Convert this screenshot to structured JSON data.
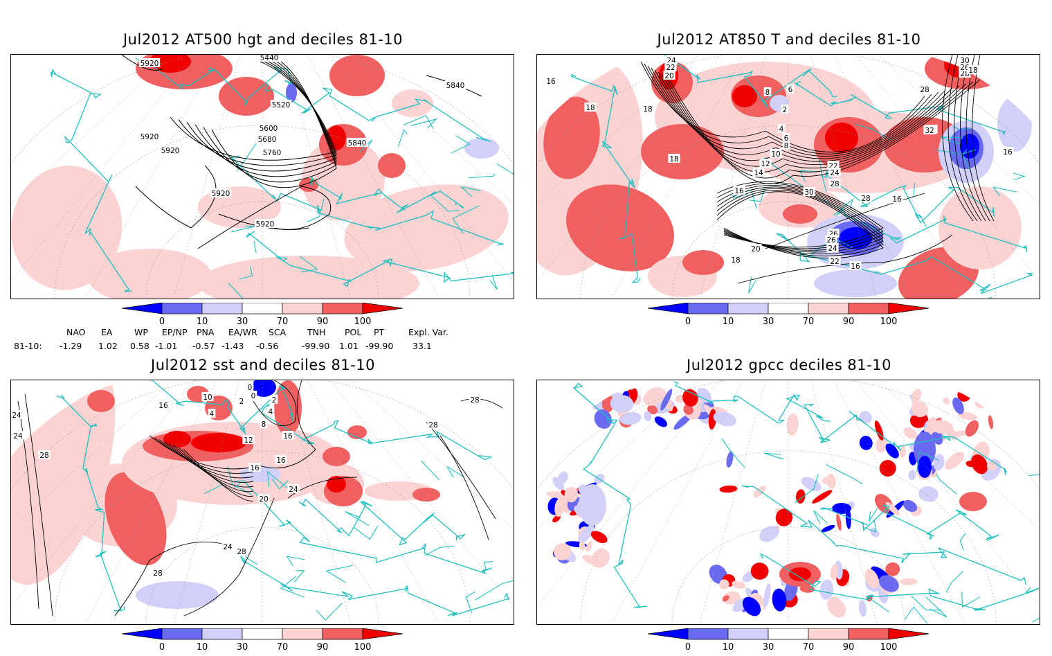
{
  "panels": [
    {
      "id": "p1",
      "title": "Jul2012 AT500 hgt and deciles 81-10",
      "contour_labels": [
        "5920",
        "5440",
        "5520",
        "5600",
        "5680",
        "5760",
        "5840",
        "5920",
        "5920",
        "5840",
        "5920",
        "5920"
      ]
    },
    {
      "id": "p2",
      "title": "Jul2012 AT850 T and deciles 81-10",
      "contour_labels": [
        "24",
        "22",
        "20",
        "16",
        "18",
        "18",
        "18",
        "8",
        "6",
        "2",
        "4",
        "6",
        "8",
        "10",
        "12",
        "14",
        "16",
        "22",
        "24",
        "28",
        "30",
        "28",
        "26",
        "26",
        "24",
        "22",
        "20",
        "18",
        "16",
        "16",
        "32",
        "28",
        "28",
        "26",
        "30",
        "32",
        "18",
        "16"
      ]
    },
    {
      "id": "p3",
      "title": "Jul2012 sst and deciles 81-10",
      "contour_labels": [
        "24",
        "24",
        "28",
        "16",
        "10",
        "4",
        "0",
        "2",
        "0",
        "2",
        "4",
        "8",
        "12",
        "16",
        "16",
        "16",
        "20",
        "24",
        "24",
        "28",
        "28",
        "28",
        "28"
      ]
    },
    {
      "id": "p4",
      "title": "Jul2012 gpcc deciles 81-10",
      "contour_labels": []
    }
  ],
  "colorbar": {
    "ticks": [
      "0",
      "10",
      "30",
      "70",
      "90",
      "100"
    ],
    "colors": {
      "below_0": "#0000ff",
      "0_10": "#6a6af0",
      "10_30": "#d0d0f8",
      "30_70": "#ffffff",
      "70_90": "#fbd3d3",
      "90_100": "#f06060",
      "above_100": "#f00000"
    }
  },
  "indices": {
    "headers": [
      "NAO",
      "EA",
      "WP",
      "EP/NP",
      "PNA",
      "EA/WR",
      "SCA",
      "TNH",
      "POL",
      "PT",
      "Expl. Var."
    ],
    "row_label": "81-10:",
    "values": [
      "-1.29",
      "1.02",
      "0.58",
      "-1.01",
      "-0.57",
      "-1.43",
      "-0.56",
      "-99.90",
      "1.01",
      "-99.90",
      "33.1"
    ]
  },
  "map_style": {
    "coast_color": "#1fbfbf",
    "contour_color": "#000000",
    "grid_color": "#999999"
  }
}
